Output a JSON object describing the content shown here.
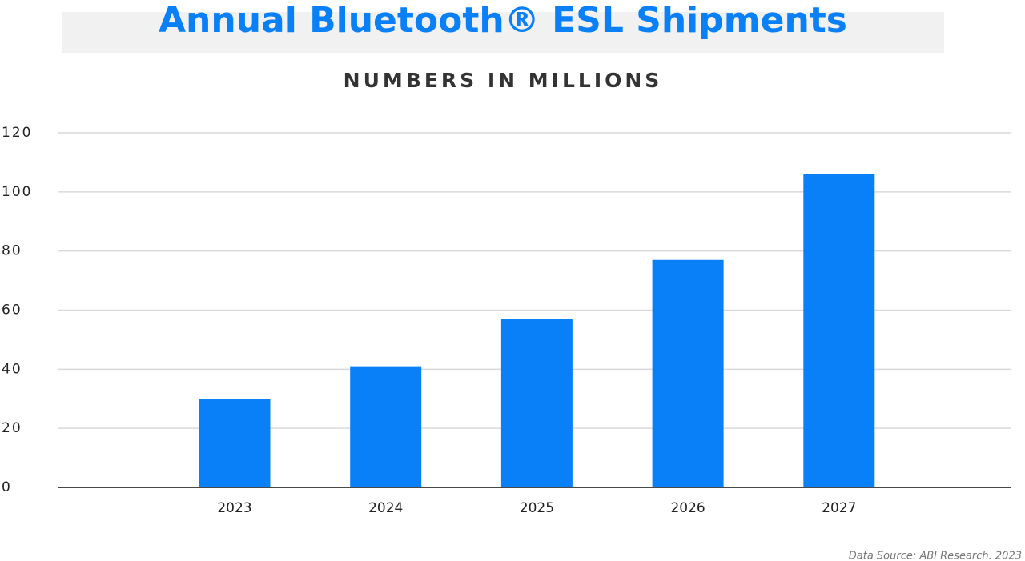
{
  "chart_data": {
    "type": "bar",
    "title": "Annual Bluetooth® ESL Shipments",
    "subtitle": "NUMBERS IN MILLIONS",
    "categories": [
      "2023",
      "2024",
      "2025",
      "2026",
      "2027"
    ],
    "values": [
      30,
      41,
      57,
      77,
      106
    ],
    "color": "#0a80f8",
    "ylim": [
      0,
      120
    ],
    "yticks": [
      0,
      20,
      40,
      60,
      80,
      100,
      120
    ],
    "grid": true,
    "source": "Data Source: ABI Research. 2023"
  }
}
